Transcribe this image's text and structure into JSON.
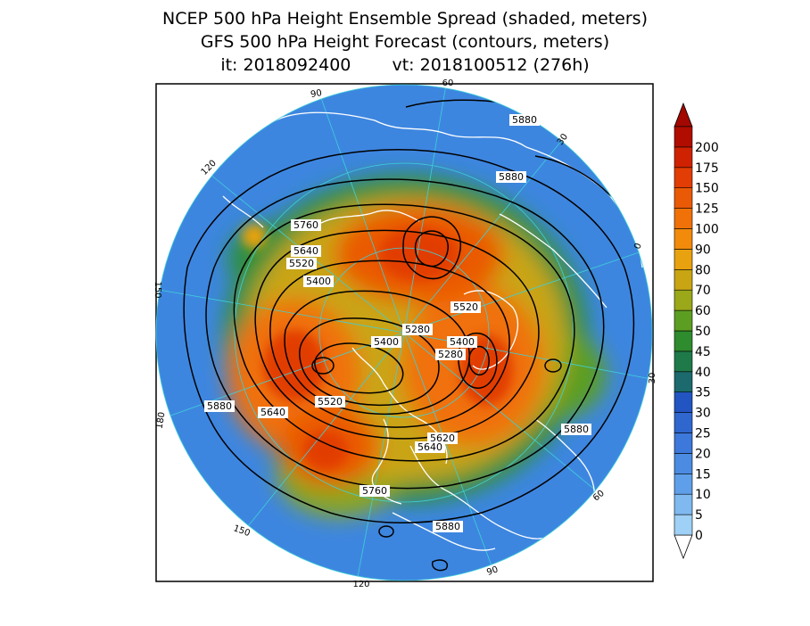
{
  "title": {
    "line1": "NCEP 500 hPa Height Ensemble Spread (shaded, meters)",
    "line2": "GFS 500 hPa Height Forecast (contours, meters)",
    "init_label": "it: 2018092400",
    "valid_label": "vt: 2018100512 (276h)"
  },
  "longitude_labels": [
    "60",
    "30",
    "0",
    "30",
    "60",
    "90",
    "120",
    "150",
    "180",
    "150",
    "120",
    "90"
  ],
  "contour_labels": [
    "5880",
    "5880",
    "5760",
    "5640",
    "5520",
    "5400",
    "5520",
    "5280",
    "5400",
    "5400",
    "5280",
    "5880",
    "5520",
    "5640",
    "5620",
    "5640",
    "5880",
    "5760",
    "5880"
  ],
  "colorbar": {
    "tick_labels": [
      "0",
      "5",
      "10",
      "15",
      "20",
      "25",
      "30",
      "35",
      "40",
      "45",
      "50",
      "60",
      "70",
      "80",
      "90",
      "100",
      "125",
      "150",
      "175",
      "200"
    ],
    "colors": [
      "#9fd0f5",
      "#7fb9f0",
      "#5f9fe9",
      "#4b8be2",
      "#3d79da",
      "#2f67cf",
      "#2255c1",
      "#1c6a6e",
      "#1f7a4a",
      "#2e8b2e",
      "#5c9e22",
      "#9aa81a",
      "#c9a514",
      "#e8a10f",
      "#f28a0c",
      "#f07108",
      "#ea5a06",
      "#e23d04",
      "#cf2202",
      "#b00d00"
    ],
    "under_color": "#ffffff",
    "over_color": "#a20800"
  },
  "colors": {
    "land_outline": "#ffffff",
    "contour": "#000000",
    "graticule": "#3fd0d8",
    "frame": "#000000"
  }
}
